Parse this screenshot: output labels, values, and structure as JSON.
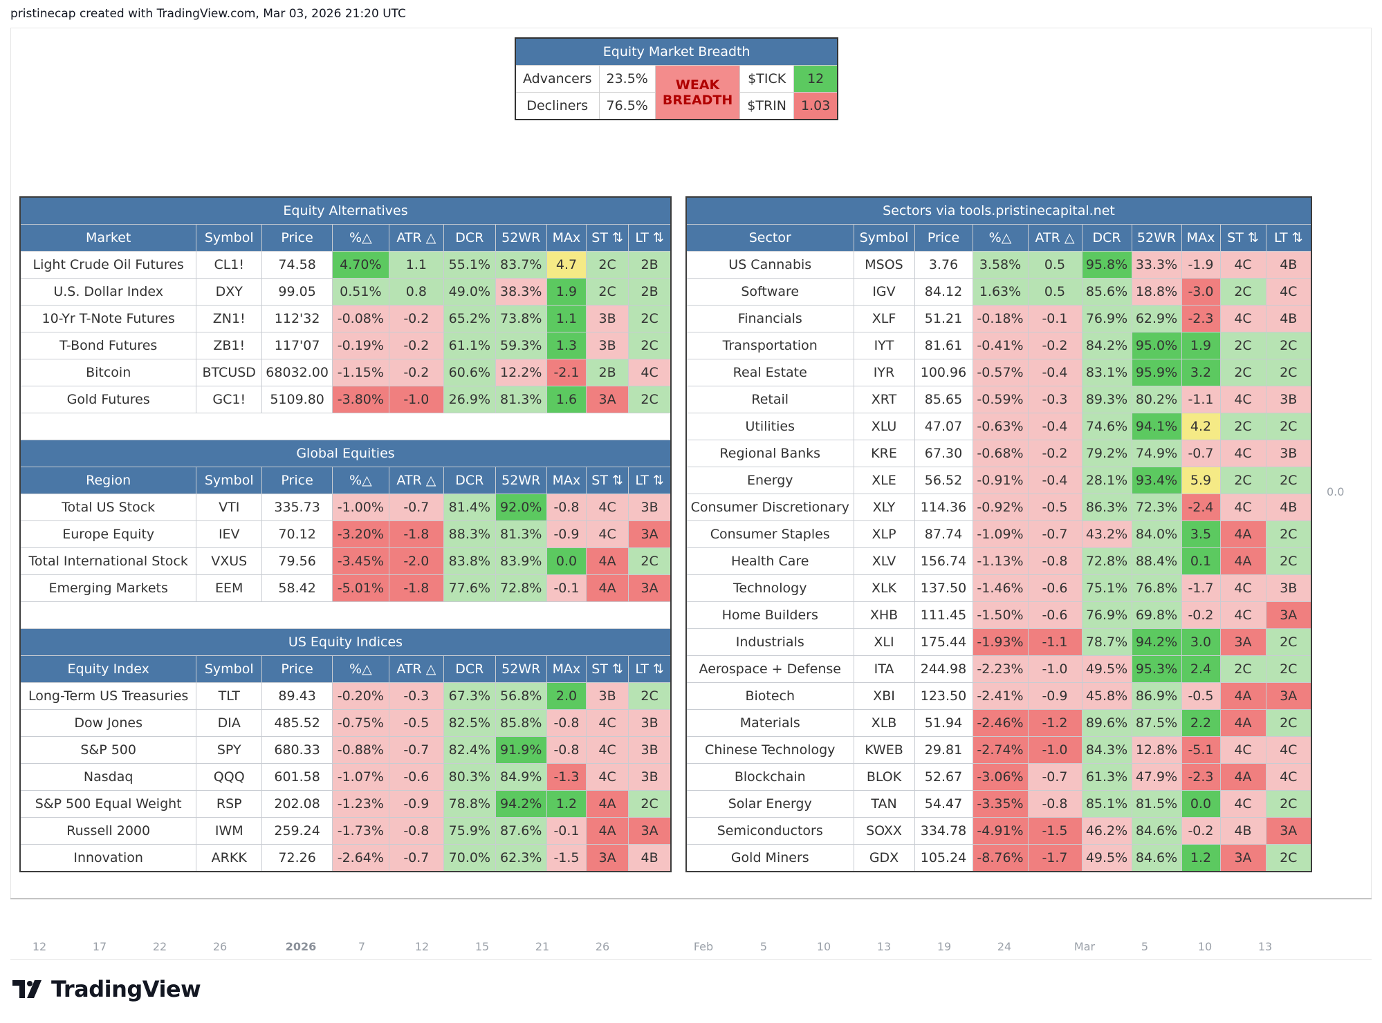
{
  "header": {
    "text": "pristinecap created with TradingView.com, Mar 03, 2026 21:20 UTC"
  },
  "colors": {
    "header_blue": "#4a77a6",
    "green_strong": "#5cc960",
    "green_light": "#b7e3b3",
    "red_strong": "#f07f7f",
    "red_light": "#f6c3c3",
    "yellow": "#f5ea86"
  },
  "breadth": {
    "title": "Equity Market Breadth",
    "advancers_label": "Advancers",
    "advancers_value": "23.5%",
    "decliners_label": "Decliners",
    "decliners_value": "76.5%",
    "status_line1": "WEAK",
    "status_line2": "BREADTH",
    "tick_label": "$TICK",
    "tick_value": "12",
    "trin_label": "$TRIN",
    "trin_value": "1.03"
  },
  "columns_tail": [
    "Symbol",
    "Price",
    "%△",
    "ATR △",
    "DCR",
    "52WR",
    "MAx",
    "ST ⇅",
    "LT ⇅"
  ],
  "left_panel": {
    "sections": [
      {
        "title": "Equity Alternatives",
        "first_col": "Market",
        "rows": [
          [
            "Light Crude Oil Futures",
            "CL1!",
            "74.58",
            "4.70%",
            "1.1",
            "55.1%",
            "83.7%",
            "4.7",
            "2C",
            "2B"
          ],
          [
            "U.S. Dollar Index",
            "DXY",
            "99.05",
            "0.51%",
            "0.8",
            "49.0%",
            "38.3%",
            "1.9",
            "2C",
            "2B"
          ],
          [
            "10-Yr T-Note Futures",
            "ZN1!",
            "112'32",
            "-0.08%",
            "-0.2",
            "65.2%",
            "73.8%",
            "1.1",
            "3B",
            "2C"
          ],
          [
            "T-Bond Futures",
            "ZB1!",
            "117'07",
            "-0.19%",
            "-0.2",
            "61.1%",
            "59.3%",
            "1.3",
            "3B",
            "2C"
          ],
          [
            "Bitcoin",
            "BTCUSD",
            "68032.00",
            "-1.15%",
            "-0.2",
            "60.6%",
            "12.2%",
            "-2.1",
            "2B",
            "4C"
          ],
          [
            "Gold Futures",
            "GC1!",
            "5109.80",
            "-3.80%",
            "-1.0",
            "26.9%",
            "81.3%",
            "1.6",
            "3A",
            "2C"
          ]
        ],
        "colors": [
          [
            "w",
            "w",
            "w",
            "G",
            "g",
            "g",
            "g",
            "y",
            "g",
            "g"
          ],
          [
            "w",
            "w",
            "w",
            "g",
            "g",
            "g",
            "r",
            "G",
            "g",
            "g"
          ],
          [
            "w",
            "w",
            "w",
            "r",
            "r",
            "g",
            "g",
            "G",
            "r",
            "g"
          ],
          [
            "w",
            "w",
            "w",
            "r",
            "r",
            "g",
            "g",
            "G",
            "r",
            "g"
          ],
          [
            "w",
            "w",
            "w",
            "r",
            "r",
            "g",
            "r",
            "R",
            "g",
            "r"
          ],
          [
            "w",
            "w",
            "w",
            "R",
            "R",
            "g",
            "g",
            "G",
            "R",
            "g"
          ]
        ]
      },
      {
        "title": "Global Equities",
        "first_col": "Region",
        "rows": [
          [
            "Total US Stock",
            "VTI",
            "335.73",
            "-1.00%",
            "-0.7",
            "81.4%",
            "92.0%",
            "-0.8",
            "4C",
            "3B"
          ],
          [
            "Europe Equity",
            "IEV",
            "70.12",
            "-3.20%",
            "-1.8",
            "88.3%",
            "81.3%",
            "-0.9",
            "4C",
            "3A"
          ],
          [
            "Total International Stock",
            "VXUS",
            "79.56",
            "-3.45%",
            "-2.0",
            "83.8%",
            "83.9%",
            "0.0",
            "4A",
            "2C"
          ],
          [
            "Emerging Markets",
            "EEM",
            "58.42",
            "-5.01%",
            "-1.8",
            "77.6%",
            "72.8%",
            "-0.1",
            "4A",
            "3A"
          ]
        ],
        "colors": [
          [
            "w",
            "w",
            "w",
            "r",
            "r",
            "g",
            "G",
            "r",
            "r",
            "r"
          ],
          [
            "w",
            "w",
            "w",
            "R",
            "R",
            "g",
            "g",
            "r",
            "r",
            "R"
          ],
          [
            "w",
            "w",
            "w",
            "R",
            "R",
            "g",
            "g",
            "G",
            "R",
            "g"
          ],
          [
            "w",
            "w",
            "w",
            "R",
            "R",
            "g",
            "g",
            "r",
            "R",
            "R"
          ]
        ]
      },
      {
        "title": "US Equity Indices",
        "first_col": "Equity Index",
        "rows": [
          [
            "Long-Term US Treasuries",
            "TLT",
            "89.43",
            "-0.20%",
            "-0.3",
            "67.3%",
            "56.8%",
            "2.0",
            "3B",
            "2C"
          ],
          [
            "Dow Jones",
            "DIA",
            "485.52",
            "-0.75%",
            "-0.5",
            "82.5%",
            "85.8%",
            "-0.8",
            "4C",
            "3B"
          ],
          [
            "S&P 500",
            "SPY",
            "680.33",
            "-0.88%",
            "-0.7",
            "82.4%",
            "91.9%",
            "-0.8",
            "4C",
            "3B"
          ],
          [
            "Nasdaq",
            "QQQ",
            "601.58",
            "-1.07%",
            "-0.6",
            "80.3%",
            "84.9%",
            "-1.3",
            "4C",
            "3B"
          ],
          [
            "S&P 500 Equal Weight",
            "RSP",
            "202.08",
            "-1.23%",
            "-0.9",
            "78.8%",
            "94.2%",
            "1.2",
            "4A",
            "2C"
          ],
          [
            "Russell 2000",
            "IWM",
            "259.24",
            "-1.73%",
            "-0.8",
            "75.9%",
            "87.6%",
            "-0.1",
            "4A",
            "3A"
          ],
          [
            "Innovation",
            "ARKK",
            "72.26",
            "-2.64%",
            "-0.7",
            "70.0%",
            "62.3%",
            "-1.5",
            "3A",
            "4B"
          ]
        ],
        "colors": [
          [
            "w",
            "w",
            "w",
            "r",
            "r",
            "g",
            "g",
            "G",
            "r",
            "g"
          ],
          [
            "w",
            "w",
            "w",
            "r",
            "r",
            "g",
            "g",
            "r",
            "r",
            "r"
          ],
          [
            "w",
            "w",
            "w",
            "r",
            "r",
            "g",
            "G",
            "r",
            "r",
            "r"
          ],
          [
            "w",
            "w",
            "w",
            "r",
            "r",
            "g",
            "g",
            "R",
            "r",
            "r"
          ],
          [
            "w",
            "w",
            "w",
            "r",
            "r",
            "g",
            "G",
            "G",
            "R",
            "g"
          ],
          [
            "w",
            "w",
            "w",
            "r",
            "r",
            "g",
            "g",
            "r",
            "R",
            "R"
          ],
          [
            "w",
            "w",
            "w",
            "r",
            "r",
            "g",
            "g",
            "r",
            "R",
            "r"
          ]
        ]
      }
    ]
  },
  "right_panel": {
    "title": "Sectors via tools.pristinecapital.net",
    "first_col": "Sector",
    "rows": [
      [
        "US Cannabis",
        "MSOS",
        "3.76",
        "3.58%",
        "0.5",
        "95.8%",
        "33.3%",
        "-1.9",
        "4C",
        "4B"
      ],
      [
        "Software",
        "IGV",
        "84.12",
        "1.63%",
        "0.5",
        "85.6%",
        "18.8%",
        "-3.0",
        "2C",
        "4C"
      ],
      [
        "Financials",
        "XLF",
        "51.21",
        "-0.18%",
        "-0.1",
        "76.9%",
        "62.9%",
        "-2.3",
        "4C",
        "4B"
      ],
      [
        "Transportation",
        "IYT",
        "81.61",
        "-0.41%",
        "-0.2",
        "84.2%",
        "95.0%",
        "1.9",
        "2C",
        "2C"
      ],
      [
        "Real Estate",
        "IYR",
        "100.96",
        "-0.57%",
        "-0.4",
        "83.1%",
        "95.9%",
        "3.2",
        "2C",
        "2C"
      ],
      [
        "Retail",
        "XRT",
        "85.65",
        "-0.59%",
        "-0.3",
        "89.3%",
        "80.2%",
        "-1.1",
        "4C",
        "3B"
      ],
      [
        "Utilities",
        "XLU",
        "47.07",
        "-0.63%",
        "-0.4",
        "74.6%",
        "94.1%",
        "4.2",
        "2C",
        "2C"
      ],
      [
        "Regional Banks",
        "KRE",
        "67.30",
        "-0.68%",
        "-0.2",
        "79.2%",
        "74.9%",
        "-0.7",
        "4C",
        "3B"
      ],
      [
        "Energy",
        "XLE",
        "56.52",
        "-0.91%",
        "-0.4",
        "28.1%",
        "93.4%",
        "5.9",
        "2C",
        "2C"
      ],
      [
        "Consumer Discretionary",
        "XLY",
        "114.36",
        "-0.92%",
        "-0.5",
        "86.3%",
        "72.3%",
        "-2.4",
        "4C",
        "4B"
      ],
      [
        "Consumer Staples",
        "XLP",
        "87.74",
        "-1.09%",
        "-0.7",
        "43.2%",
        "84.0%",
        "3.5",
        "4A",
        "2C"
      ],
      [
        "Health Care",
        "XLV",
        "156.74",
        "-1.13%",
        "-0.8",
        "72.8%",
        "88.4%",
        "0.1",
        "4A",
        "2C"
      ],
      [
        "Technology",
        "XLK",
        "137.50",
        "-1.46%",
        "-0.6",
        "75.1%",
        "76.8%",
        "-1.7",
        "4C",
        "3B"
      ],
      [
        "Home Builders",
        "XHB",
        "111.45",
        "-1.50%",
        "-0.6",
        "76.9%",
        "69.8%",
        "-0.2",
        "4C",
        "3A"
      ],
      [
        "Industrials",
        "XLI",
        "175.44",
        "-1.93%",
        "-1.1",
        "78.7%",
        "94.2%",
        "3.0",
        "3A",
        "2C"
      ],
      [
        "Aerospace + Defense",
        "ITA",
        "244.98",
        "-2.23%",
        "-1.0",
        "49.5%",
        "95.3%",
        "2.4",
        "2C",
        "2C"
      ],
      [
        "Biotech",
        "XBI",
        "123.50",
        "-2.41%",
        "-0.9",
        "45.8%",
        "86.9%",
        "-0.5",
        "4A",
        "3A"
      ],
      [
        "Materials",
        "XLB",
        "51.94",
        "-2.46%",
        "-1.2",
        "89.6%",
        "87.5%",
        "2.2",
        "4A",
        "2C"
      ],
      [
        "Chinese Technology",
        "KWEB",
        "29.81",
        "-2.74%",
        "-1.0",
        "84.3%",
        "12.8%",
        "-5.1",
        "4C",
        "4C"
      ],
      [
        "Blockchain",
        "BLOK",
        "52.67",
        "-3.06%",
        "-0.7",
        "61.3%",
        "47.9%",
        "-2.3",
        "4A",
        "4C"
      ],
      [
        "Solar Energy",
        "TAN",
        "54.47",
        "-3.35%",
        "-0.8",
        "85.1%",
        "81.5%",
        "0.0",
        "4C",
        "2C"
      ],
      [
        "Semiconductors",
        "SOXX",
        "334.78",
        "-4.91%",
        "-1.5",
        "46.2%",
        "84.6%",
        "-0.2",
        "4B",
        "3A"
      ],
      [
        "Gold Miners",
        "GDX",
        "105.24",
        "-8.76%",
        "-1.7",
        "49.5%",
        "84.6%",
        "1.2",
        "3A",
        "2C"
      ]
    ],
    "colors": [
      [
        "w",
        "w",
        "w",
        "g",
        "g",
        "G",
        "r",
        "r",
        "r",
        "r"
      ],
      [
        "w",
        "w",
        "w",
        "g",
        "g",
        "g",
        "r",
        "R",
        "g",
        "r"
      ],
      [
        "w",
        "w",
        "w",
        "r",
        "r",
        "g",
        "g",
        "R",
        "r",
        "r"
      ],
      [
        "w",
        "w",
        "w",
        "r",
        "r",
        "g",
        "G",
        "G",
        "g",
        "g"
      ],
      [
        "w",
        "w",
        "w",
        "r",
        "r",
        "g",
        "G",
        "G",
        "g",
        "g"
      ],
      [
        "w",
        "w",
        "w",
        "r",
        "r",
        "g",
        "g",
        "r",
        "r",
        "r"
      ],
      [
        "w",
        "w",
        "w",
        "r",
        "r",
        "g",
        "G",
        "y",
        "g",
        "g"
      ],
      [
        "w",
        "w",
        "w",
        "r",
        "r",
        "g",
        "g",
        "r",
        "r",
        "r"
      ],
      [
        "w",
        "w",
        "w",
        "r",
        "r",
        "g",
        "G",
        "y",
        "g",
        "g"
      ],
      [
        "w",
        "w",
        "w",
        "r",
        "r",
        "g",
        "g",
        "R",
        "r",
        "r"
      ],
      [
        "w",
        "w",
        "w",
        "r",
        "r",
        "r",
        "g",
        "G",
        "R",
        "g"
      ],
      [
        "w",
        "w",
        "w",
        "r",
        "r",
        "g",
        "g",
        "G",
        "R",
        "g"
      ],
      [
        "w",
        "w",
        "w",
        "r",
        "r",
        "g",
        "g",
        "r",
        "r",
        "r"
      ],
      [
        "w",
        "w",
        "w",
        "r",
        "r",
        "g",
        "g",
        "r",
        "r",
        "R"
      ],
      [
        "w",
        "w",
        "w",
        "R",
        "R",
        "g",
        "G",
        "G",
        "R",
        "g"
      ],
      [
        "w",
        "w",
        "w",
        "r",
        "r",
        "r",
        "G",
        "G",
        "g",
        "g"
      ],
      [
        "w",
        "w",
        "w",
        "r",
        "r",
        "r",
        "g",
        "r",
        "R",
        "R"
      ],
      [
        "w",
        "w",
        "w",
        "R",
        "R",
        "g",
        "g",
        "G",
        "R",
        "g"
      ],
      [
        "w",
        "w",
        "w",
        "R",
        "R",
        "g",
        "r",
        "R",
        "r",
        "r"
      ],
      [
        "w",
        "w",
        "w",
        "R",
        "r",
        "g",
        "r",
        "R",
        "R",
        "r"
      ],
      [
        "w",
        "w",
        "w",
        "R",
        "r",
        "g",
        "g",
        "G",
        "r",
        "g"
      ],
      [
        "w",
        "w",
        "w",
        "R",
        "R",
        "r",
        "g",
        "r",
        "r",
        "R"
      ],
      [
        "w",
        "w",
        "w",
        "R",
        "R",
        "r",
        "g",
        "G",
        "R",
        "g"
      ]
    ]
  },
  "price_scale": {
    "value": "0.0"
  },
  "time_axis": {
    "ticks": [
      "12",
      "17",
      "22",
      "26",
      "2026",
      "7",
      "12",
      "15",
      "21",
      "26",
      "Feb",
      "5",
      "10",
      "13",
      "19",
      "24",
      "Mar",
      "5",
      "10",
      "13"
    ]
  },
  "footer": {
    "logo_text": "TradingView"
  }
}
